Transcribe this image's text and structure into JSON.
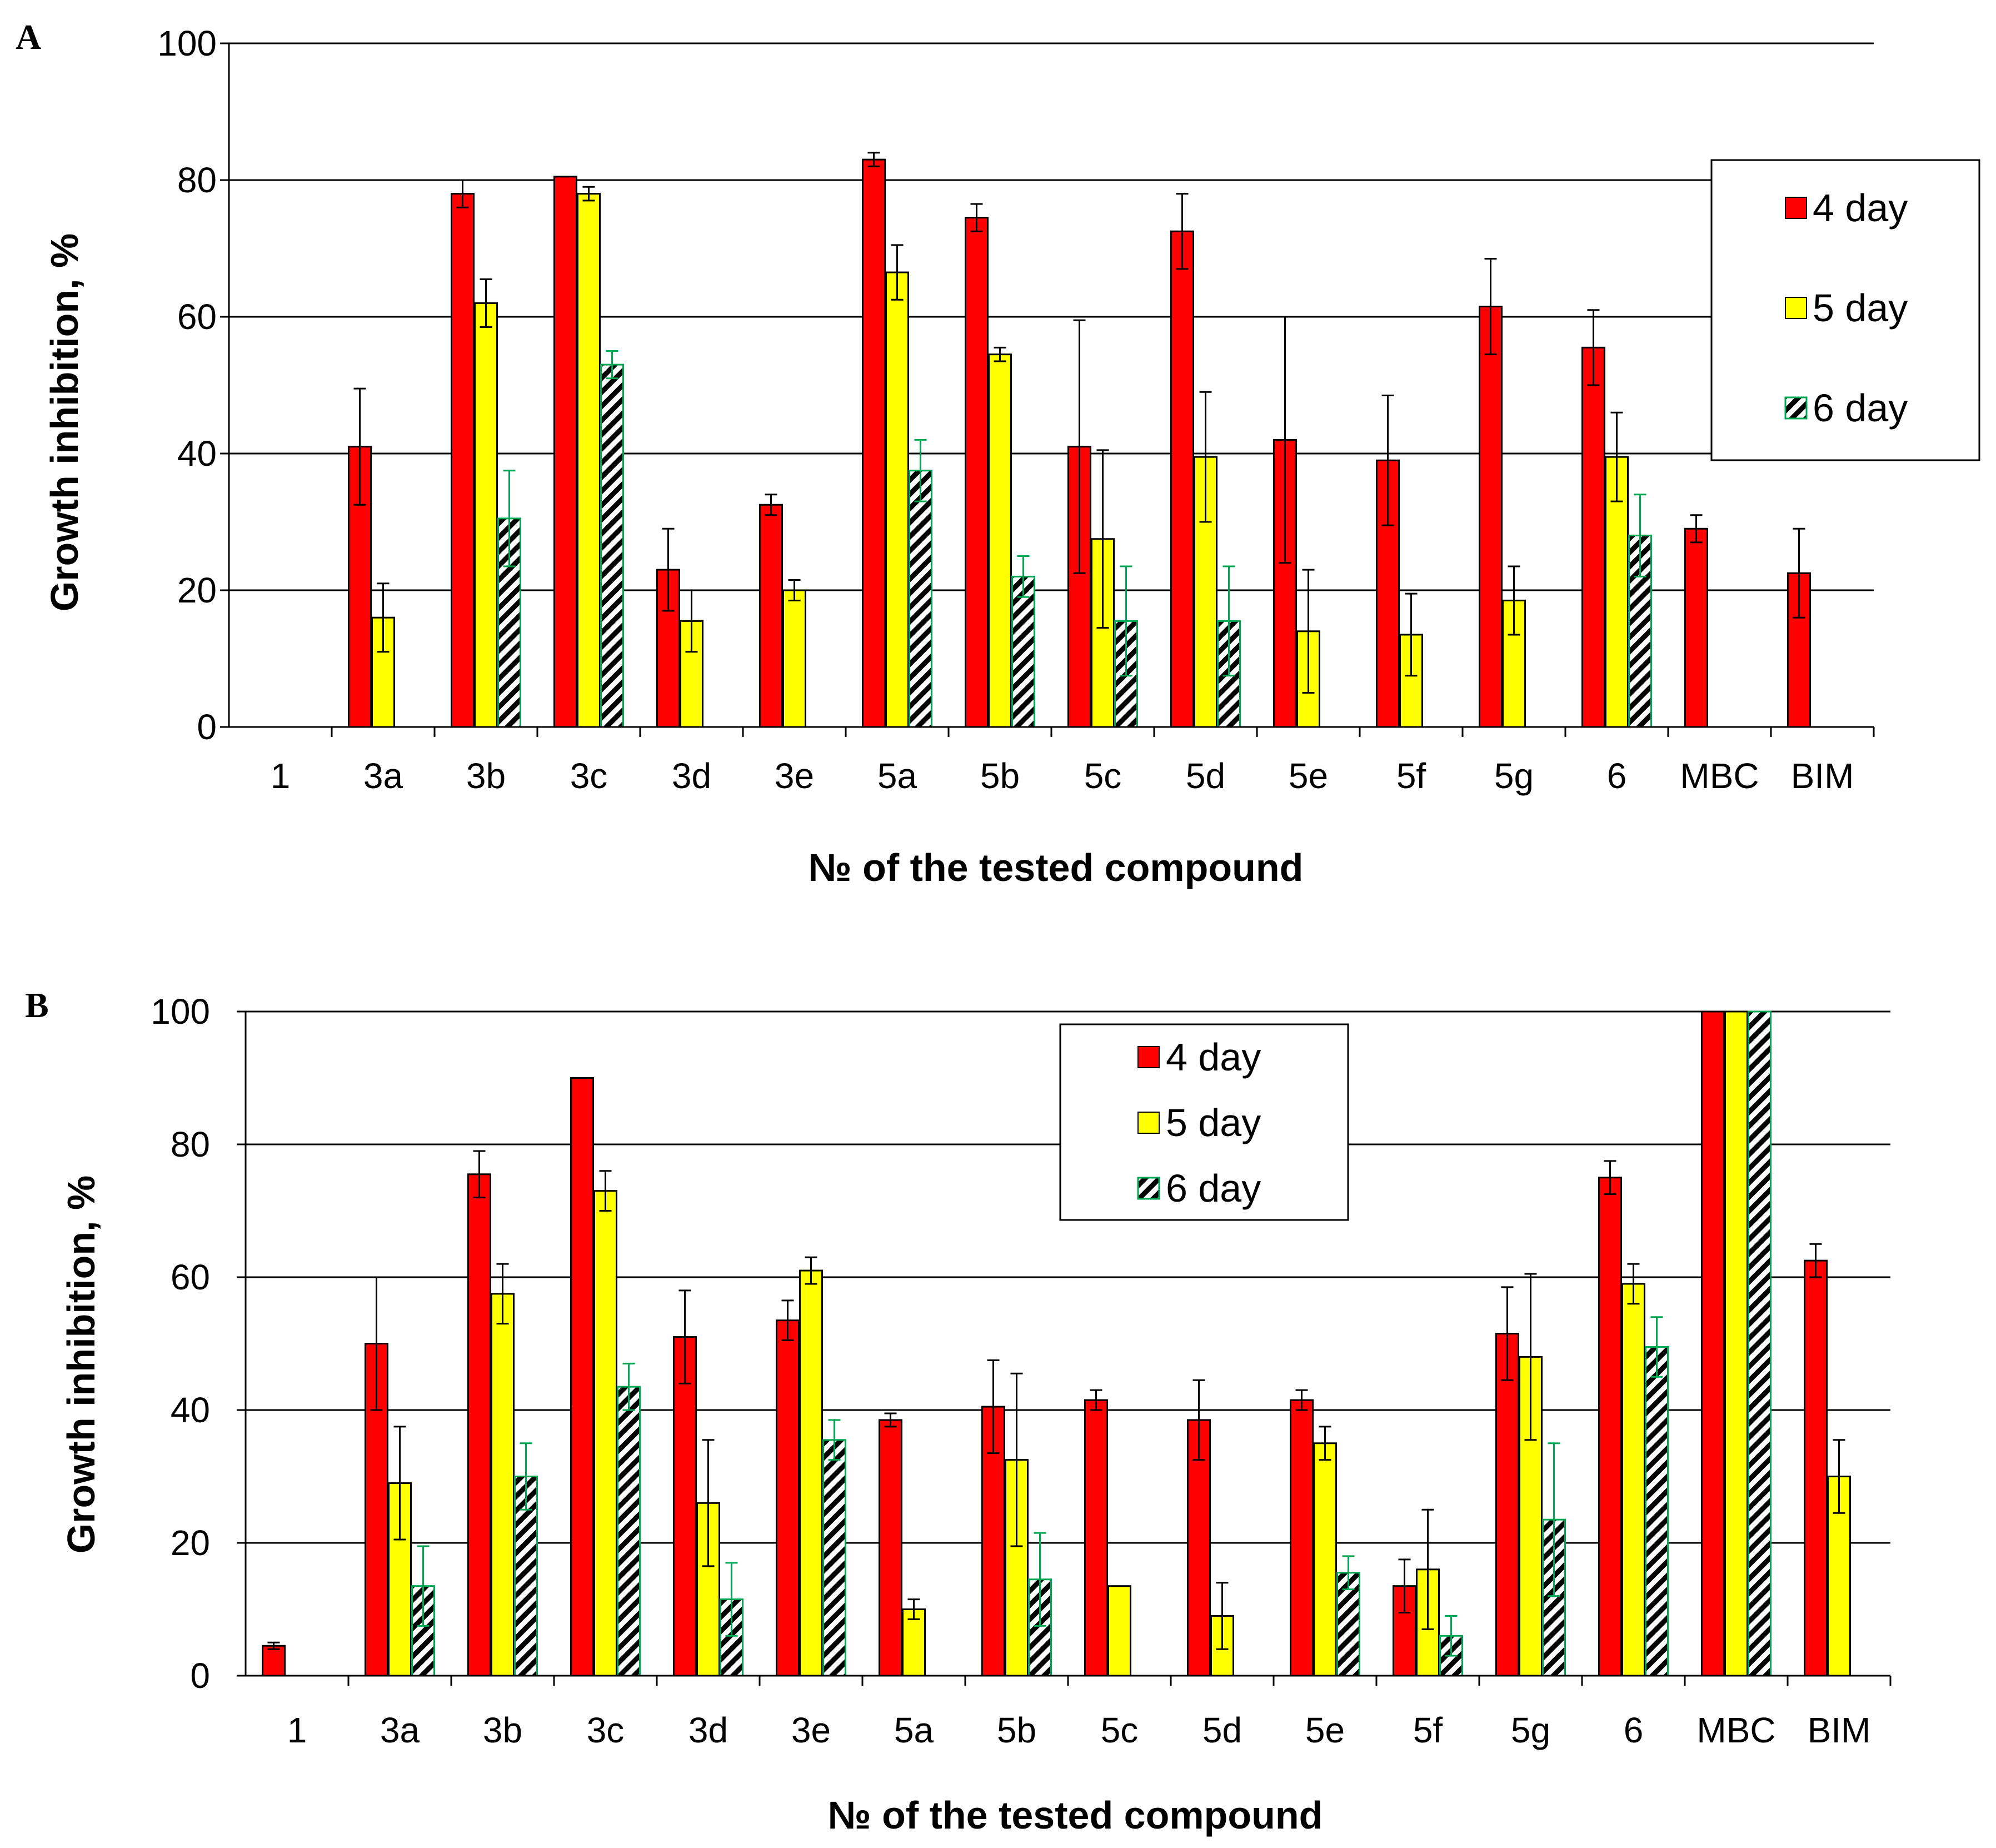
{
  "colors": {
    "day4": "#ff0000",
    "day5": "#ffff00",
    "day6_stripe": "#000000",
    "day6_border": "#00a651",
    "bar_border": "#000000",
    "grid": "#000000",
    "background": "#ffffff"
  },
  "chart_data": [
    {
      "panel_label": "A",
      "type": "bar",
      "xlabel": "№ of the tested compound",
      "ylabel": "Growth inhibition, %",
      "ylim": [
        0,
        100
      ],
      "yticks": [
        "0",
        "20",
        "40",
        "60",
        "80",
        "100"
      ],
      "grid": true,
      "legend_position": "right",
      "categories": [
        "1",
        "3a",
        "3b",
        "3c",
        "3d",
        "3e",
        "5a",
        "5b",
        "5c",
        "5d",
        "5e",
        "5f",
        "5g",
        "6",
        "MBC",
        "BIM"
      ],
      "series": [
        {
          "name": "4 day",
          "values": [
            0,
            41,
            78,
            80.5,
            23,
            32.5,
            83,
            74.5,
            41,
            72.5,
            42,
            39,
            61.5,
            55.5,
            29,
            22.5
          ],
          "errors": [
            0,
            8.5,
            2,
            0,
            6,
            1.5,
            1,
            2,
            18.5,
            5.5,
            18,
            9.5,
            7,
            5.5,
            2,
            6.5
          ]
        },
        {
          "name": "5 day",
          "values": [
            0,
            16,
            62,
            78,
            15.5,
            20,
            66.5,
            54.5,
            27.5,
            39.5,
            14,
            13.5,
            18.5,
            39.5,
            0,
            0
          ],
          "errors": [
            0,
            5,
            3.5,
            1,
            4.5,
            1.5,
            4,
            1,
            13,
            9.5,
            9,
            6,
            5,
            6.5,
            0,
            0
          ]
        },
        {
          "name": "6 day",
          "values": [
            0,
            0,
            30.5,
            53,
            0,
            0,
            37.5,
            22,
            15.5,
            15.5,
            0,
            0,
            0,
            28,
            0,
            0
          ],
          "errors": [
            0,
            0,
            7,
            2,
            0,
            0,
            4.5,
            3,
            8,
            8,
            0,
            0,
            0,
            6,
            0,
            0
          ]
        }
      ]
    },
    {
      "panel_label": "B",
      "type": "bar",
      "xlabel": "№ of the tested compound",
      "ylabel": "Growth inhibition, %",
      "ylim": [
        0,
        100
      ],
      "yticks": [
        "0",
        "20",
        "40",
        "60",
        "80",
        "100"
      ],
      "grid": true,
      "legend_position": "top-center",
      "categories": [
        "1",
        "3a",
        "3b",
        "3c",
        "3d",
        "3e",
        "5a",
        "5b",
        "5c",
        "5d",
        "5e",
        "5f",
        "5g",
        "6",
        "MBC",
        "BIM"
      ],
      "series": [
        {
          "name": "4 day",
          "values": [
            4.5,
            50,
            75.5,
            90,
            51,
            53.5,
            38.5,
            40.5,
            41.5,
            38.5,
            41.5,
            13.5,
            51.5,
            75,
            100,
            62.5
          ],
          "errors": [
            0.5,
            10,
            3.5,
            0,
            7,
            3,
            1,
            7,
            1.5,
            6,
            1.5,
            4,
            7,
            2.5,
            0,
            2.5
          ]
        },
        {
          "name": "5 day",
          "values": [
            0,
            29,
            57.5,
            73,
            26,
            61,
            10,
            32.5,
            13.5,
            9,
            35,
            16,
            48,
            59,
            100,
            30
          ],
          "errors": [
            0,
            8.5,
            4.5,
            3,
            9.5,
            2,
            1.5,
            13,
            0,
            5,
            2.5,
            9,
            12.5,
            3,
            0,
            5.5
          ]
        },
        {
          "name": "6 day",
          "values": [
            0,
            13.5,
            30,
            43.5,
            11.5,
            35.5,
            0,
            14.5,
            0,
            0,
            15.5,
            6,
            23.5,
            49.5,
            100,
            0
          ],
          "errors": [
            0,
            6,
            5,
            3.5,
            5.5,
            3,
            0,
            7,
            0,
            0,
            2.5,
            3,
            11.5,
            4.5,
            0,
            0
          ]
        }
      ]
    }
  ]
}
